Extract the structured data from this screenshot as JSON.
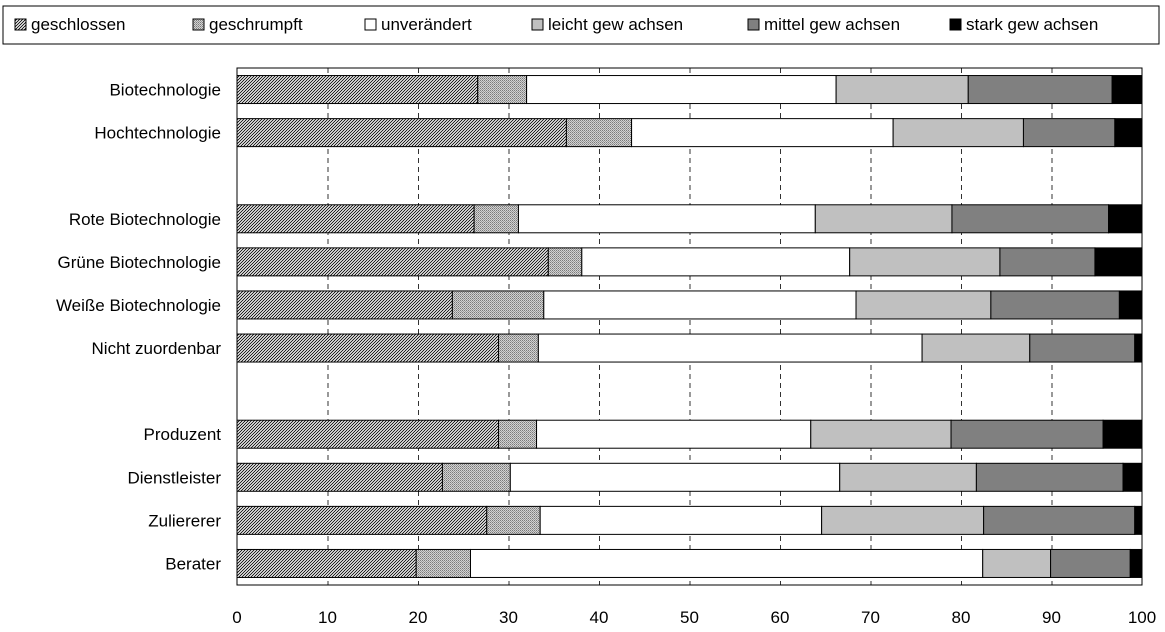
{
  "chart_data": {
    "type": "bar",
    "orientation": "horizontal",
    "stacked": true,
    "title": "",
    "xlabel": "",
    "ylabel": "",
    "xlim": [
      0,
      100
    ],
    "x_ticks": [
      0,
      10,
      20,
      30,
      40,
      50,
      60,
      70,
      80,
      90,
      100
    ],
    "grid": "vertical-dashed",
    "legend_position": "top",
    "categories": [
      "Biotechnologie",
      "Hochtechnologie",
      "",
      "Rote Biotechnologie",
      "Grüne Biotechnologie",
      "Weiße Biotechnologie",
      "Nicht zuordenbar",
      "",
      "Produzent",
      "Dienstleister",
      "Zuliererer",
      "Berater"
    ],
    "series": [
      {
        "name": "geschlossen",
        "pattern": "diagonal-hatch",
        "color": "#000000",
        "values": [
          26.6,
          36.4,
          null,
          26.2,
          34.4,
          23.8,
          28.9,
          null,
          28.9,
          22.7,
          27.6,
          19.8
        ]
      },
      {
        "name": "geschrumpft",
        "pattern": "fine-dots",
        "color": "#b4b4b4",
        "values": [
          5.4,
          7.2,
          null,
          4.9,
          3.7,
          10.1,
          4.4,
          null,
          4.2,
          7.5,
          5.9,
          6.0
        ]
      },
      {
        "name": "unverändert",
        "pattern": "solid",
        "color": "#ffffff",
        "values": [
          34.2,
          28.9,
          null,
          32.8,
          29.6,
          34.5,
          42.4,
          null,
          30.3,
          36.4,
          31.1,
          56.6
        ]
      },
      {
        "name": "leicht gew achsen",
        "pattern": "solid",
        "color": "#c0c0c0",
        "values": [
          14.6,
          14.4,
          null,
          15.1,
          16.6,
          14.9,
          11.9,
          null,
          15.5,
          15.1,
          17.9,
          7.5
        ]
      },
      {
        "name": "mittel gew achsen",
        "pattern": "solid",
        "color": "#808080",
        "values": [
          15.9,
          10.1,
          null,
          17.3,
          10.5,
          14.2,
          11.6,
          null,
          16.8,
          16.2,
          16.7,
          8.8
        ]
      },
      {
        "name": "stark gew achsen",
        "pattern": "solid",
        "color": "#000000",
        "values": [
          3.3,
          3.0,
          null,
          3.7,
          5.2,
          2.5,
          0.8,
          null,
          4.3,
          2.1,
          0.8,
          1.3
        ]
      }
    ]
  }
}
